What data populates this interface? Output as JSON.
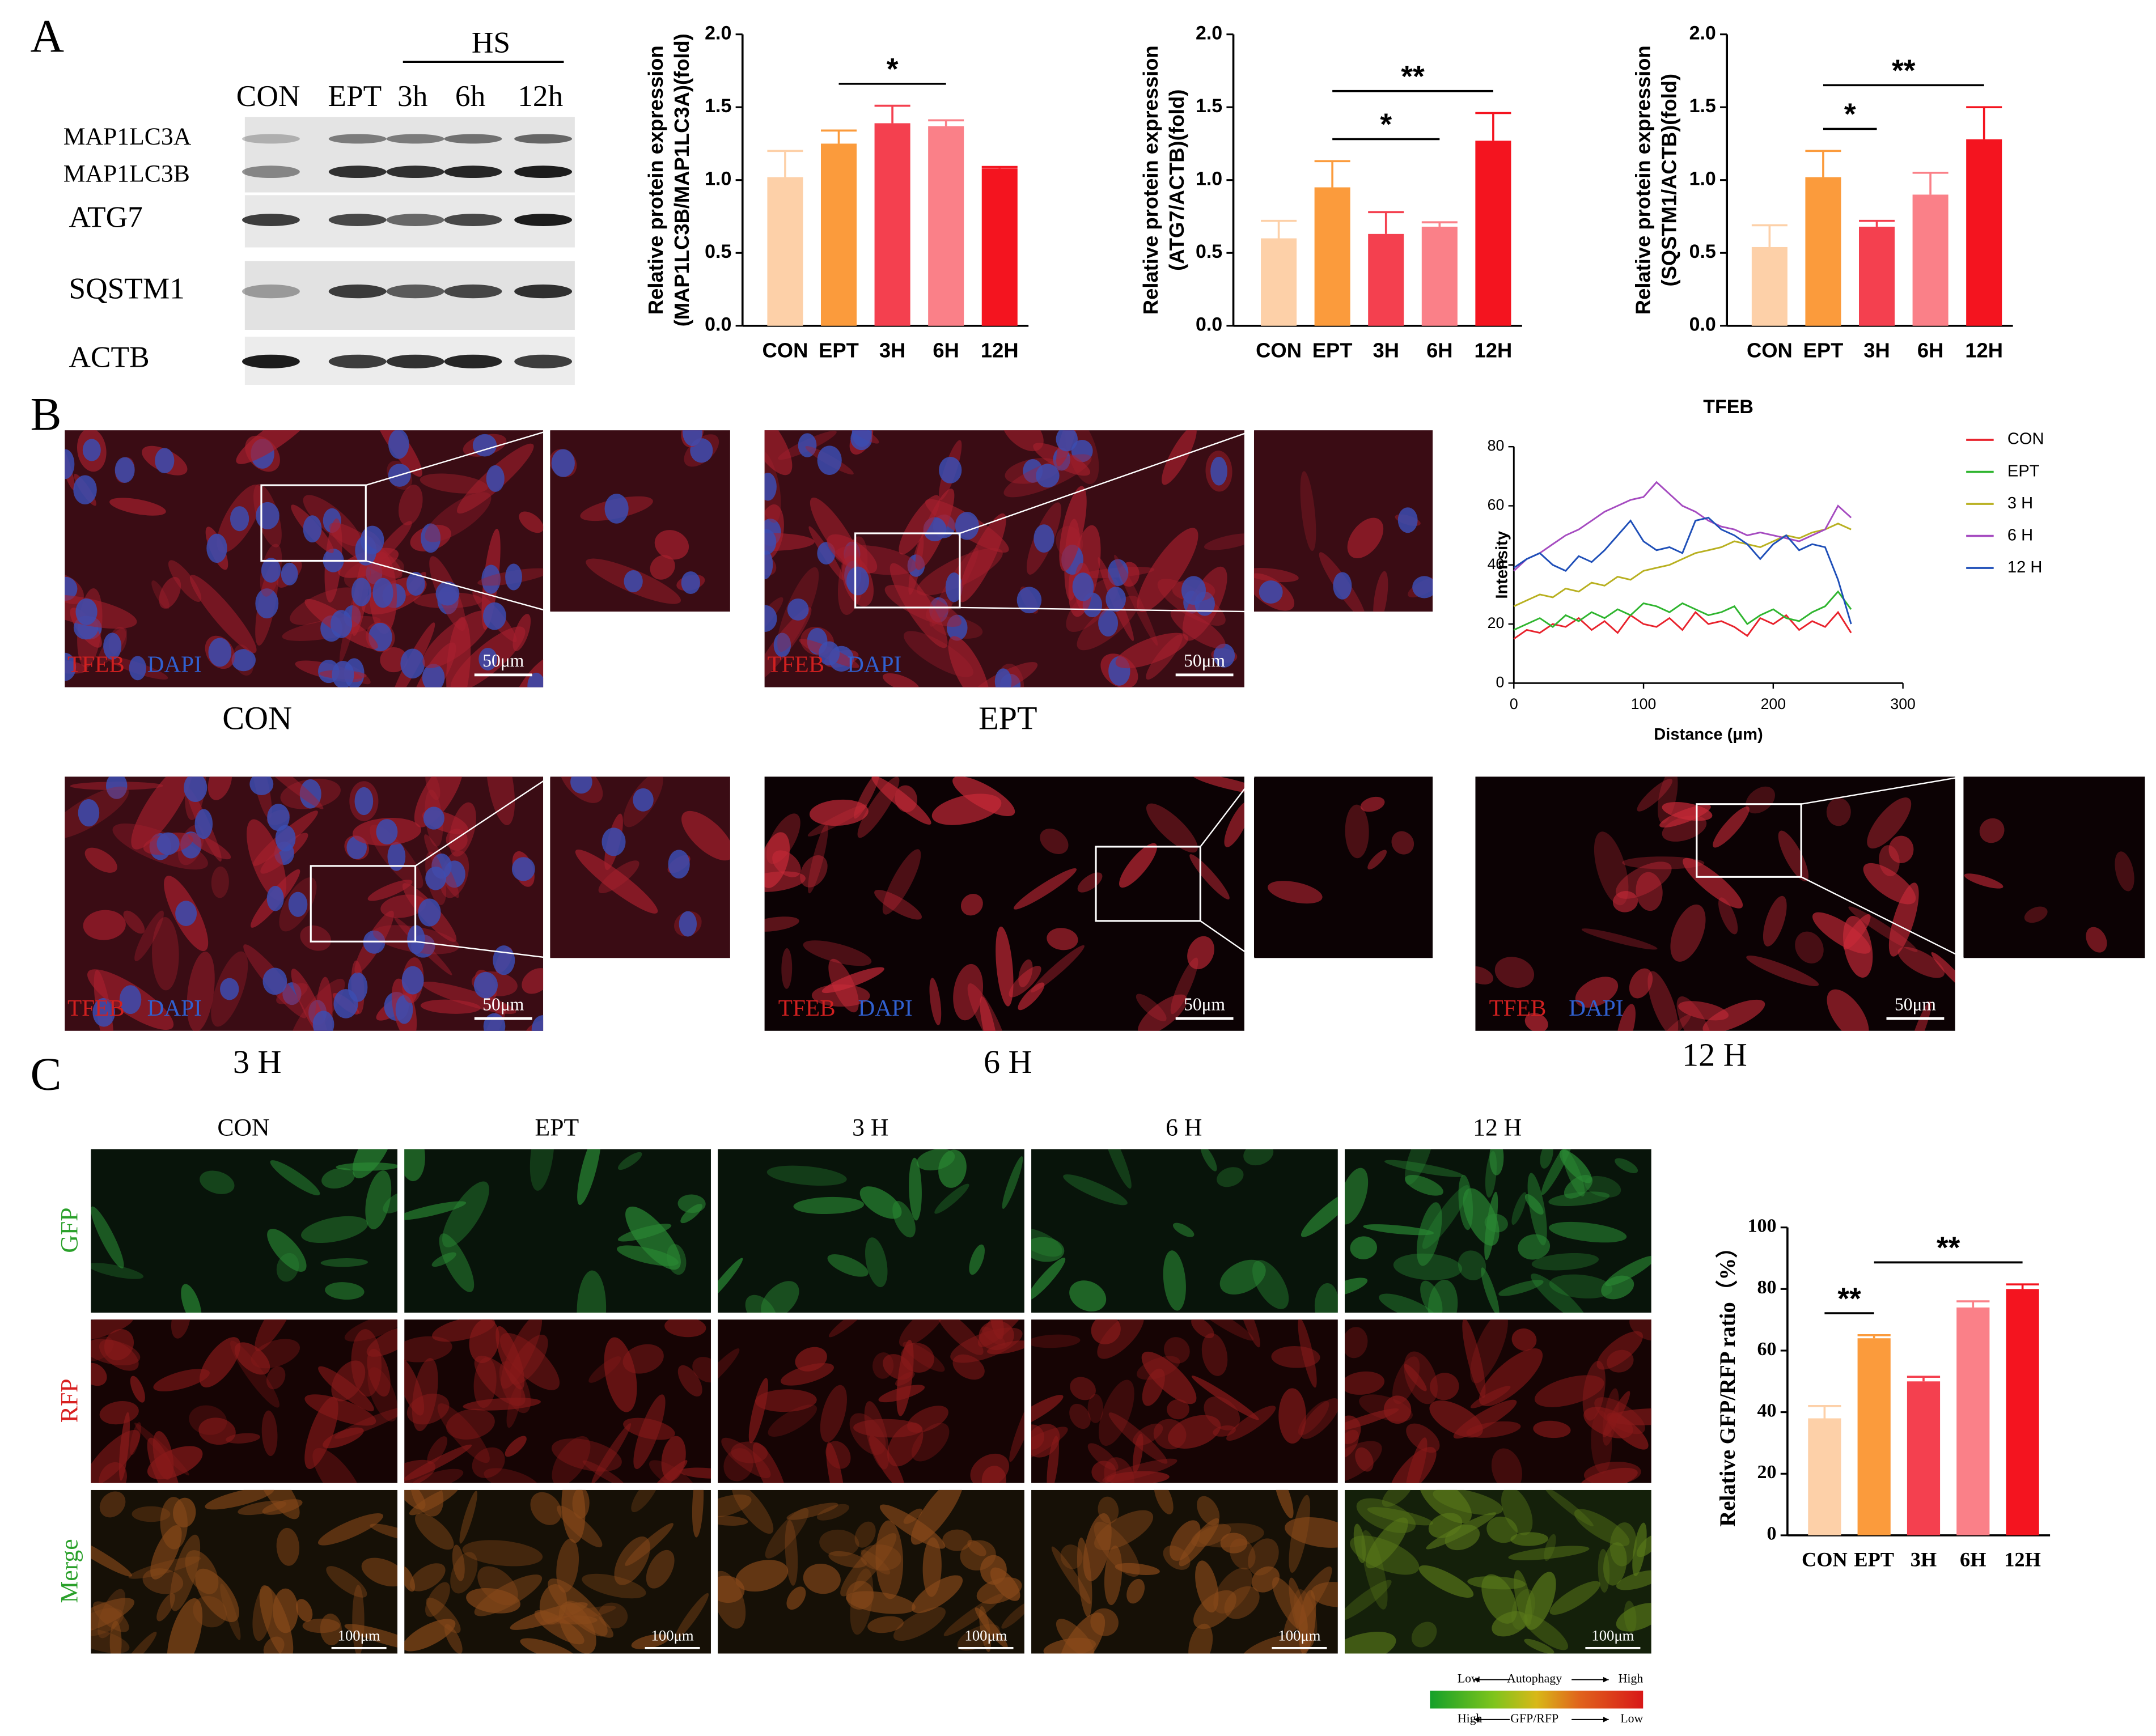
{
  "panel_labels": [
    "A",
    "B",
    "C"
  ],
  "blot": {
    "group": "HS",
    "lanes": [
      "CON",
      "EPT",
      "3h",
      "6h",
      "12h"
    ],
    "proteins": [
      "MAP1LC3A",
      "MAP1LC3B",
      "ATG7",
      "SQSTM1",
      "ACTB"
    ]
  },
  "chart_data": [
    {
      "type": "bar",
      "ylabel": [
        "Relative protein expression",
        "(MAP1LC3B/MAP1LC3A)(fold)"
      ],
      "categories": [
        "CON",
        "EPT",
        "3H",
        "6H",
        "12H"
      ],
      "values": [
        1.02,
        1.25,
        1.39,
        1.37,
        1.08
      ],
      "errors": [
        0.18,
        0.09,
        0.12,
        0.04,
        0.01
      ],
      "colors": [
        "#fdd0a8",
        "#fb9b3c",
        "#f4404f",
        "#fa8088",
        "#f4141f"
      ],
      "ylim": [
        0,
        2
      ],
      "yticks": [
        {
          "value": 0,
          "label": "0.0"
        },
        {
          "value": 0.5,
          "label": "0.5"
        },
        {
          "value": 1,
          "label": "1.0"
        },
        {
          "value": 1.5,
          "label": "1.5"
        },
        {
          "value": 2,
          "label": "2.0"
        }
      ],
      "annotations": [
        {
          "text": "*",
          "from": "EPT",
          "to": "6H"
        }
      ]
    },
    {
      "type": "bar",
      "ylabel": [
        "Relative protein expression",
        "(ATG7/ACTB)(fold)"
      ],
      "categories": [
        "CON",
        "EPT",
        "3H",
        "6H",
        "12H"
      ],
      "values": [
        0.6,
        0.95,
        0.63,
        0.68,
        1.27
      ],
      "errors": [
        0.12,
        0.18,
        0.15,
        0.03,
        0.19
      ],
      "colors": [
        "#fdd0a8",
        "#fb9b3c",
        "#f4404f",
        "#fa8088",
        "#f4141f"
      ],
      "ylim": [
        0,
        2
      ],
      "yticks": [
        {
          "value": 0,
          "label": "0.0"
        },
        {
          "value": 0.5,
          "label": "0.5"
        },
        {
          "value": 1,
          "label": "1.0"
        },
        {
          "value": 1.5,
          "label": "1.5"
        },
        {
          "value": 2,
          "label": "2.0"
        }
      ],
      "annotations": [
        {
          "text": "*",
          "from": "EPT",
          "to": "6H"
        },
        {
          "text": "**",
          "from": "EPT",
          "to": "12H"
        }
      ]
    },
    {
      "type": "bar",
      "ylabel": [
        "Relative protein expression",
        "(SQSTM1/ACTB)(fold)"
      ],
      "categories": [
        "CON",
        "EPT",
        "3H",
        "6H",
        "12H"
      ],
      "values": [
        0.54,
        1.02,
        0.68,
        0.9,
        1.28
      ],
      "errors": [
        0.15,
        0.18,
        0.04,
        0.15,
        0.22
      ],
      "colors": [
        "#fdd0a8",
        "#fb9b3c",
        "#f4404f",
        "#fa8088",
        "#f4141f"
      ],
      "ylim": [
        0,
        2
      ],
      "yticks": [
        {
          "value": 0,
          "label": "0.0"
        },
        {
          "value": 0.5,
          "label": "0.5"
        },
        {
          "value": 1,
          "label": "1.0"
        },
        {
          "value": 1.5,
          "label": "1.5"
        },
        {
          "value": 2,
          "label": "2.0"
        }
      ],
      "annotations": [
        {
          "text": "*",
          "from": "EPT",
          "to": "3H"
        },
        {
          "text": "**",
          "from": "EPT",
          "to": "12H"
        }
      ]
    },
    {
      "type": "line",
      "title": "TFEB",
      "xlabel": "Distance (μm)",
      "ylabel": "Intensity",
      "x": [
        0,
        10,
        20,
        30,
        40,
        50,
        60,
        70,
        80,
        90,
        100,
        110,
        120,
        130,
        140,
        150,
        160,
        170,
        180,
        190,
        200,
        210,
        220,
        230,
        240,
        250,
        260
      ],
      "xlim": [
        0,
        300
      ],
      "xticks": [
        0,
        100,
        200,
        300
      ],
      "ylim": [
        0,
        80
      ],
      "yticks": [
        0,
        20,
        40,
        60,
        80
      ],
      "series": [
        {
          "name": "CON",
          "color": "#e8222c",
          "values": [
            15,
            18,
            17,
            20,
            19,
            22,
            18,
            21,
            17,
            23,
            20,
            19,
            22,
            18,
            24,
            20,
            21,
            19,
            16,
            22,
            20,
            23,
            18,
            21,
            19,
            24,
            17
          ]
        },
        {
          "name": "EPT",
          "color": "#2fb52f",
          "values": [
            18,
            20,
            22,
            19,
            23,
            21,
            24,
            22,
            25,
            23,
            27,
            26,
            24,
            27,
            25,
            23,
            24,
            26,
            20,
            23,
            25,
            22,
            21,
            24,
            26,
            31,
            25
          ]
        },
        {
          "name": "3 H",
          "color": "#b8b020",
          "values": [
            26,
            28,
            30,
            29,
            32,
            31,
            34,
            33,
            36,
            35,
            38,
            39,
            40,
            42,
            44,
            45,
            46,
            48,
            47,
            46,
            48,
            50,
            49,
            51,
            52,
            54,
            52
          ]
        },
        {
          "name": "6 H",
          "color": "#a54bc0",
          "values": [
            38,
            42,
            44,
            47,
            50,
            52,
            55,
            58,
            60,
            62,
            63,
            68,
            64,
            60,
            58,
            55,
            53,
            52,
            50,
            51,
            50,
            49,
            48,
            50,
            52,
            60,
            56
          ]
        },
        {
          "name": "12 H",
          "color": "#1f4fb8",
          "values": [
            39,
            42,
            44,
            40,
            38,
            43,
            41,
            45,
            50,
            55,
            48,
            45,
            46,
            44,
            55,
            56,
            52,
            50,
            47,
            42,
            47,
            50,
            45,
            47,
            46,
            35,
            20
          ]
        }
      ]
    },
    {
      "type": "bar",
      "ylabel": "Relative GFP/RFP ratio（%）",
      "categories": [
        "CON",
        "EPT",
        "3H",
        "6H",
        "12H"
      ],
      "values": [
        38,
        64,
        50,
        74,
        80
      ],
      "errors": [
        4,
        1,
        1.5,
        2,
        1.5
      ],
      "colors": [
        "#fdd0a8",
        "#fb9b3c",
        "#f4404f",
        "#fa8088",
        "#f4141f"
      ],
      "ylim": [
        0,
        100
      ],
      "yticks": [
        0,
        20,
        40,
        60,
        80,
        100
      ],
      "annotations": [
        {
          "text": "**",
          "from": "CON",
          "to": "EPT"
        },
        {
          "text": "**",
          "from": "EPT",
          "to": "12H"
        }
      ]
    }
  ],
  "micrographs": {
    "stain_red": "TFEB",
    "stain_blue": "DAPI",
    "scale": "50μm",
    "captions": [
      "CON",
      "EPT",
      "3 H",
      "6 H",
      "12 H"
    ]
  },
  "reporter": {
    "columns": [
      "CON",
      "EPT",
      "3 H",
      "6 H",
      "12 H"
    ],
    "rows": [
      "GFP",
      "RFP",
      "Merge"
    ],
    "scale": "100μm",
    "legend": {
      "top": [
        "Low",
        "Autophagy",
        "High"
      ],
      "bottom": [
        "High",
        "GFP/RFP",
        "Low"
      ]
    }
  }
}
